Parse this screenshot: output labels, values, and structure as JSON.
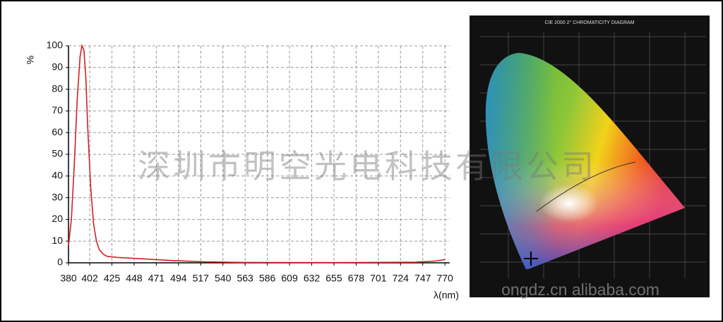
{
  "chart_data": {
    "type": "line",
    "ylabel": "%",
    "xlabel": "λ(nm)",
    "x": [
      380,
      383,
      386,
      389,
      392,
      394,
      396,
      398,
      400,
      403,
      406,
      409,
      412,
      416,
      420,
      430,
      450,
      470,
      490,
      520,
      560,
      650,
      740,
      760,
      770
    ],
    "values": [
      8,
      20,
      45,
      75,
      95,
      100,
      98,
      85,
      62,
      35,
      18,
      10,
      6,
      4,
      3,
      2.5,
      2,
      1.5,
      1,
      0.5,
      0.2,
      0.1,
      0.3,
      0.8,
      1.5
    ],
    "color": "#d42020",
    "xlim": [
      380,
      775
    ],
    "ylim": [
      0,
      100
    ],
    "xticks": [
      380,
      402,
      425,
      448,
      471,
      494,
      517,
      540,
      563,
      586,
      609,
      632,
      655,
      678,
      701,
      724,
      747,
      770
    ],
    "yticks": [
      0,
      10,
      20,
      30,
      40,
      50,
      60,
      70,
      80,
      90,
      100
    ],
    "grid": true
  },
  "watermark": "深圳市明空光电科技有限公司",
  "watermark_url": "ongdz.cn alibaba.com",
  "diagram_title": "CIE 2000 2° CHROMATICITY DIAGRAM"
}
